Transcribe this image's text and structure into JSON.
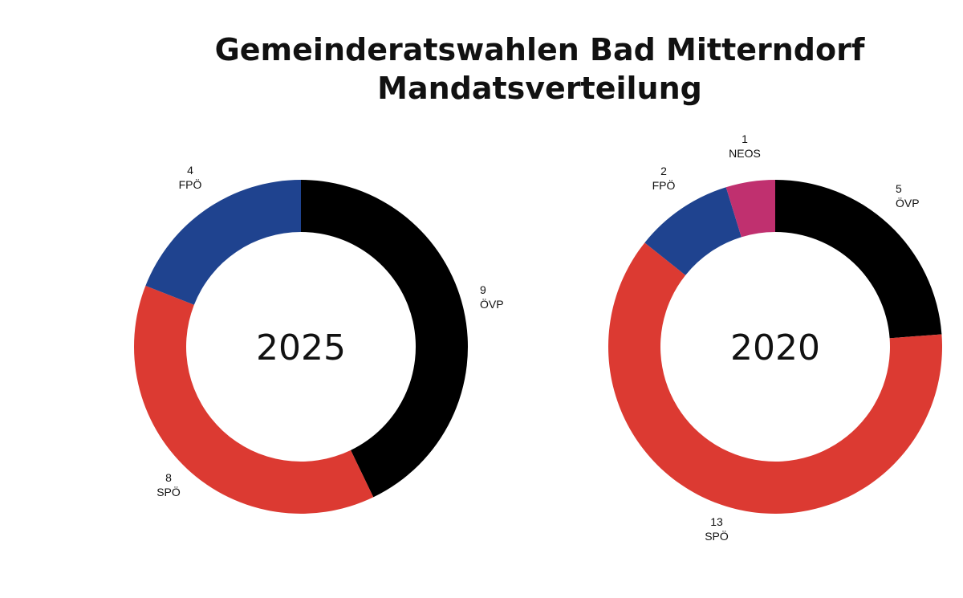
{
  "title_line1": "Gemeinderatswahlen Bad Mitterndorf",
  "title_line2": "Mandatsverteilung",
  "chart_data": [
    {
      "type": "pie",
      "center_label": "2025",
      "slices": [
        {
          "party": "ÖVP",
          "seats": 9,
          "color": "#000000"
        },
        {
          "party": "SPÖ",
          "seats": 8,
          "color": "#dc3a32"
        },
        {
          "party": "FPÖ",
          "seats": 4,
          "color": "#1f438f"
        }
      ]
    },
    {
      "type": "pie",
      "center_label": "2020",
      "slices": [
        {
          "party": "ÖVP",
          "seats": 5,
          "color": "#000000"
        },
        {
          "party": "SPÖ",
          "seats": 13,
          "color": "#dc3a32"
        },
        {
          "party": "FPÖ",
          "seats": 2,
          "color": "#1f438f"
        },
        {
          "party": "NEOS",
          "seats": 1,
          "color": "#c0306f"
        }
      ]
    }
  ]
}
